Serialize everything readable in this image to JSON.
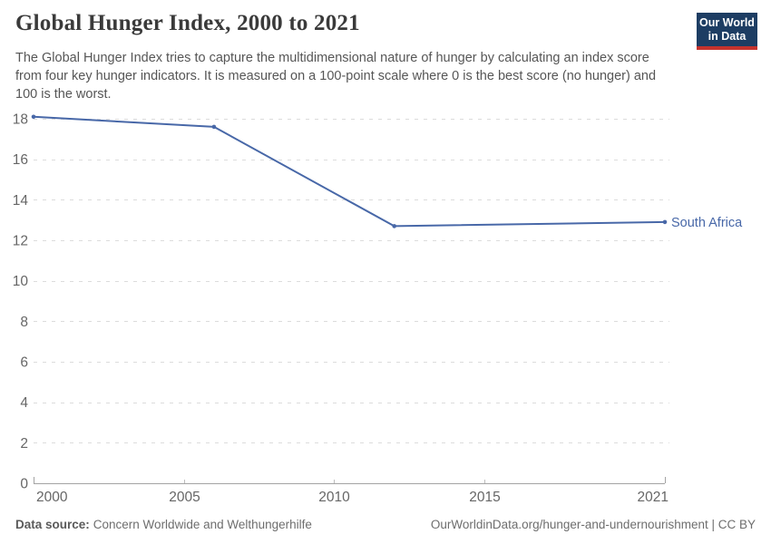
{
  "header": {
    "title": "Global Hunger Index, 2000 to 2021",
    "subtitle": "The Global Hunger Index tries to capture the multidimensional nature of hunger by calculating an index score from four key hunger indicators. It is measured on a 100-point scale where 0 is the best score (no hunger) and 100 is the worst."
  },
  "logo": {
    "line1": "Our World",
    "line2": "in Data",
    "bg_color": "#1d3d63",
    "accent_color": "#c5332d"
  },
  "footer": {
    "datasource_label": "Data source:",
    "datasource_value": "Concern Worldwide and Welthungerhilfe",
    "right_text": "OurWorldinData.org/hunger-and-undernourishment | CC BY"
  },
  "chart_data": {
    "type": "line",
    "title": "Global Hunger Index, 2000 to 2021",
    "xlabel": "",
    "ylabel": "",
    "xlim": [
      2000,
      2021
    ],
    "ylim": [
      0,
      18
    ],
    "x_ticks": [
      2000,
      2005,
      2010,
      2015,
      2021
    ],
    "y_ticks": [
      0,
      2,
      4,
      6,
      8,
      10,
      12,
      14,
      16,
      18
    ],
    "grid": "dashed-horizontal",
    "legend": "end-of-line-label",
    "end_label": "South Africa",
    "series": [
      {
        "name": "South Africa",
        "color": "#4868a8",
        "x": [
          2000,
          2006,
          2012,
          2021
        ],
        "values": [
          18.1,
          17.6,
          12.7,
          12.9
        ]
      }
    ],
    "style": {
      "gridline_color": "#dcdcdc",
      "axis_color": "#a3a3a3",
      "tick_label_color": "#666666"
    }
  }
}
